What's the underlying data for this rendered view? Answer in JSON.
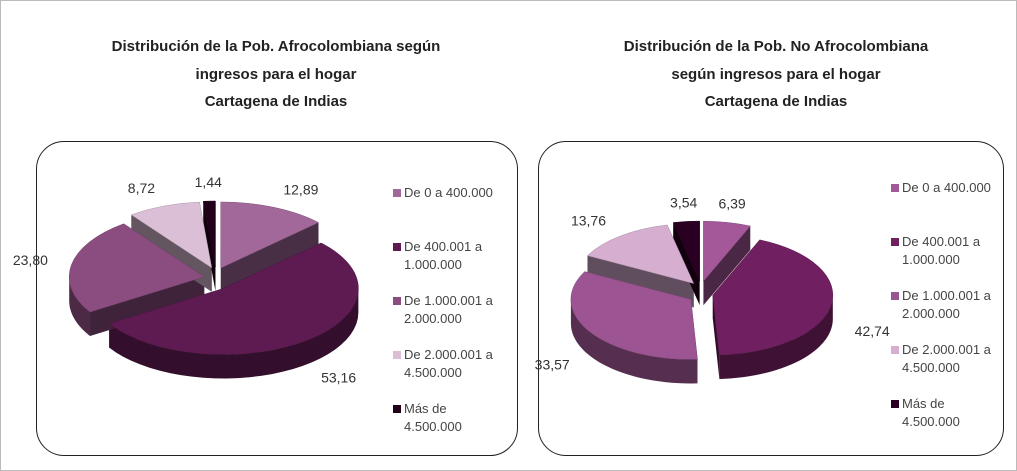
{
  "chart_data": [
    {
      "type": "pie",
      "title": "Distribución de la Pob. Afrocolombiana según\ningresos para el hogar\nCartagena de Indias",
      "categories": [
        "De 0 a 400.000",
        "De 400.001 a\n1.000.000",
        "De 1.000.001 a\n2.000.000",
        "De 2.000.001 a\n4.500.000",
        "Más de\n4.500.000"
      ],
      "values": [
        12.89,
        53.16,
        23.8,
        8.72,
        1.44
      ],
      "value_labels": [
        "12,89",
        "53,16",
        "23,80",
        "8,72",
        "1,44"
      ],
      "colors": [
        "#a3689a",
        "#5e1b51",
        "#8b4d80",
        "#dbbfd6",
        "#22001a"
      ]
    },
    {
      "type": "pie",
      "title": "Distribución de la Pob. No Afrocolombiana\nsegún ingresos para el hogar\nCartagena de Indias",
      "categories": [
        "De 0 a 400.000",
        "De 400.001 a\n1.000.000",
        "De 1.000.001 a\n2.000.000",
        "De 2.000.001 a\n4.500.000",
        "Más de\n4.500.000"
      ],
      "values": [
        6.39,
        42.74,
        33.57,
        13.76,
        3.54
      ],
      "value_labels": [
        "6,39",
        "42,74",
        "33,57",
        "13,76",
        "3,54"
      ],
      "colors": [
        "#a4589a",
        "#701f60",
        "#9c5592",
        "#d6aed0",
        "#2a0022"
      ]
    }
  ]
}
